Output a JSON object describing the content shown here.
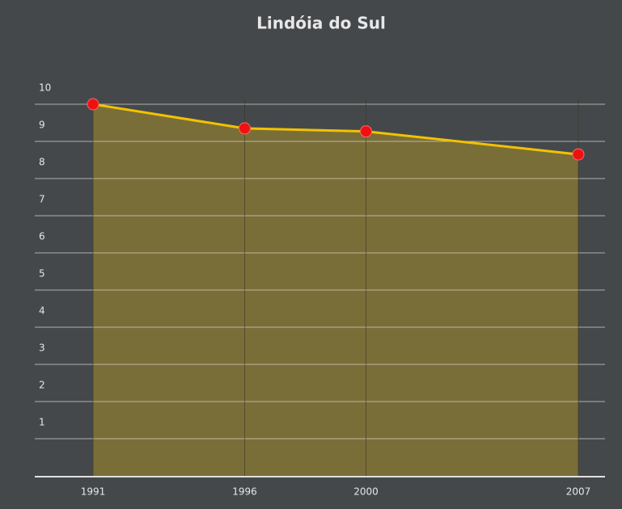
{
  "chart_data": {
    "type": "area",
    "title": "Lindóia do Sul",
    "x": [
      1991,
      1996,
      2000,
      2007
    ],
    "values": [
      10.0,
      9.35,
      9.27,
      8.65
    ],
    "xlim": [
      1991,
      2007
    ],
    "xticks": [
      1991,
      1996,
      2000,
      2007
    ],
    "ylim": [
      0,
      10
    ],
    "yticks": [
      1,
      2,
      3,
      4,
      5,
      6,
      7,
      8,
      9,
      10
    ],
    "color": "#f2c200",
    "fill_color": "#7a6e38",
    "marker_color": "#ee1111",
    "grid": true
  }
}
